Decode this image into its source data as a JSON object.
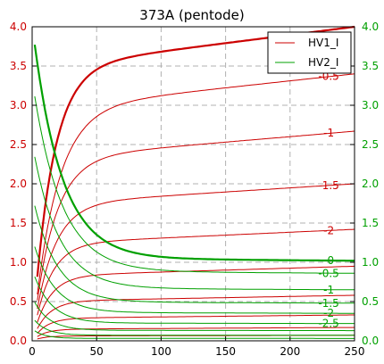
{
  "chart_data": {
    "type": "line",
    "title": "373A (pentode)",
    "xlim": [
      0,
      250
    ],
    "ylim": [
      0,
      4.0
    ],
    "x_ticks": [
      0,
      50,
      100,
      150,
      200,
      250
    ],
    "y_ticks": [
      0.0,
      0.5,
      1.0,
      1.5,
      2.0,
      2.5,
      3.0,
      3.5,
      4.0
    ],
    "grid": true,
    "legend_position": "top-right",
    "legend": [
      {
        "label": "HV1_I",
        "color": "#cc0000"
      },
      {
        "label": "HV2_I",
        "color": "#00a000"
      }
    ],
    "colors": {
      "hv1": "#cc0000",
      "hv2": "#00a000",
      "grid": "#b0b0b0"
    },
    "hv1_curves": [
      {
        "label": "",
        "sat": 4.0,
        "knee": 15,
        "thick": true
      },
      {
        "label": "-0.5",
        "sat": 3.4,
        "knee": 18
      },
      {
        "label": "-1",
        "sat": 2.67,
        "knee": 16
      },
      {
        "label": "-1.5",
        "sat": 2.0,
        "knee": 15
      },
      {
        "label": "-2",
        "sat": 1.42,
        "knee": 13
      },
      {
        "label": "",
        "sat": 0.95,
        "knee": 12
      },
      {
        "label": "",
        "sat": 0.58,
        "knee": 11
      },
      {
        "label": "",
        "sat": 0.33,
        "knee": 10
      },
      {
        "label": "",
        "sat": 0.17,
        "knee": 9
      },
      {
        "label": "",
        "sat": 0.07,
        "knee": 8
      }
    ],
    "hv2_curves": [
      {
        "label": "-0",
        "start": 4.0,
        "end": 1.02,
        "decay": 22,
        "thick": true
      },
      {
        "label": "-0.5",
        "start": 3.3,
        "end": 0.86,
        "decay": 22
      },
      {
        "label": "-1",
        "start": 2.5,
        "end": 0.65,
        "decay": 20
      },
      {
        "label": "-1.5",
        "start": 1.85,
        "end": 0.48,
        "decay": 18
      },
      {
        "label": "-2",
        "start": 1.3,
        "end": 0.35,
        "decay": 16
      },
      {
        "label": "-2.5",
        "start": 0.9,
        "end": 0.22,
        "decay": 14
      },
      {
        "label": "",
        "start": 0.55,
        "end": 0.13,
        "decay": 12
      },
      {
        "label": "",
        "start": 0.3,
        "end": 0.07,
        "decay": 10
      },
      {
        "label": "",
        "start": 0.15,
        "end": 0.03,
        "decay": 9
      }
    ]
  }
}
